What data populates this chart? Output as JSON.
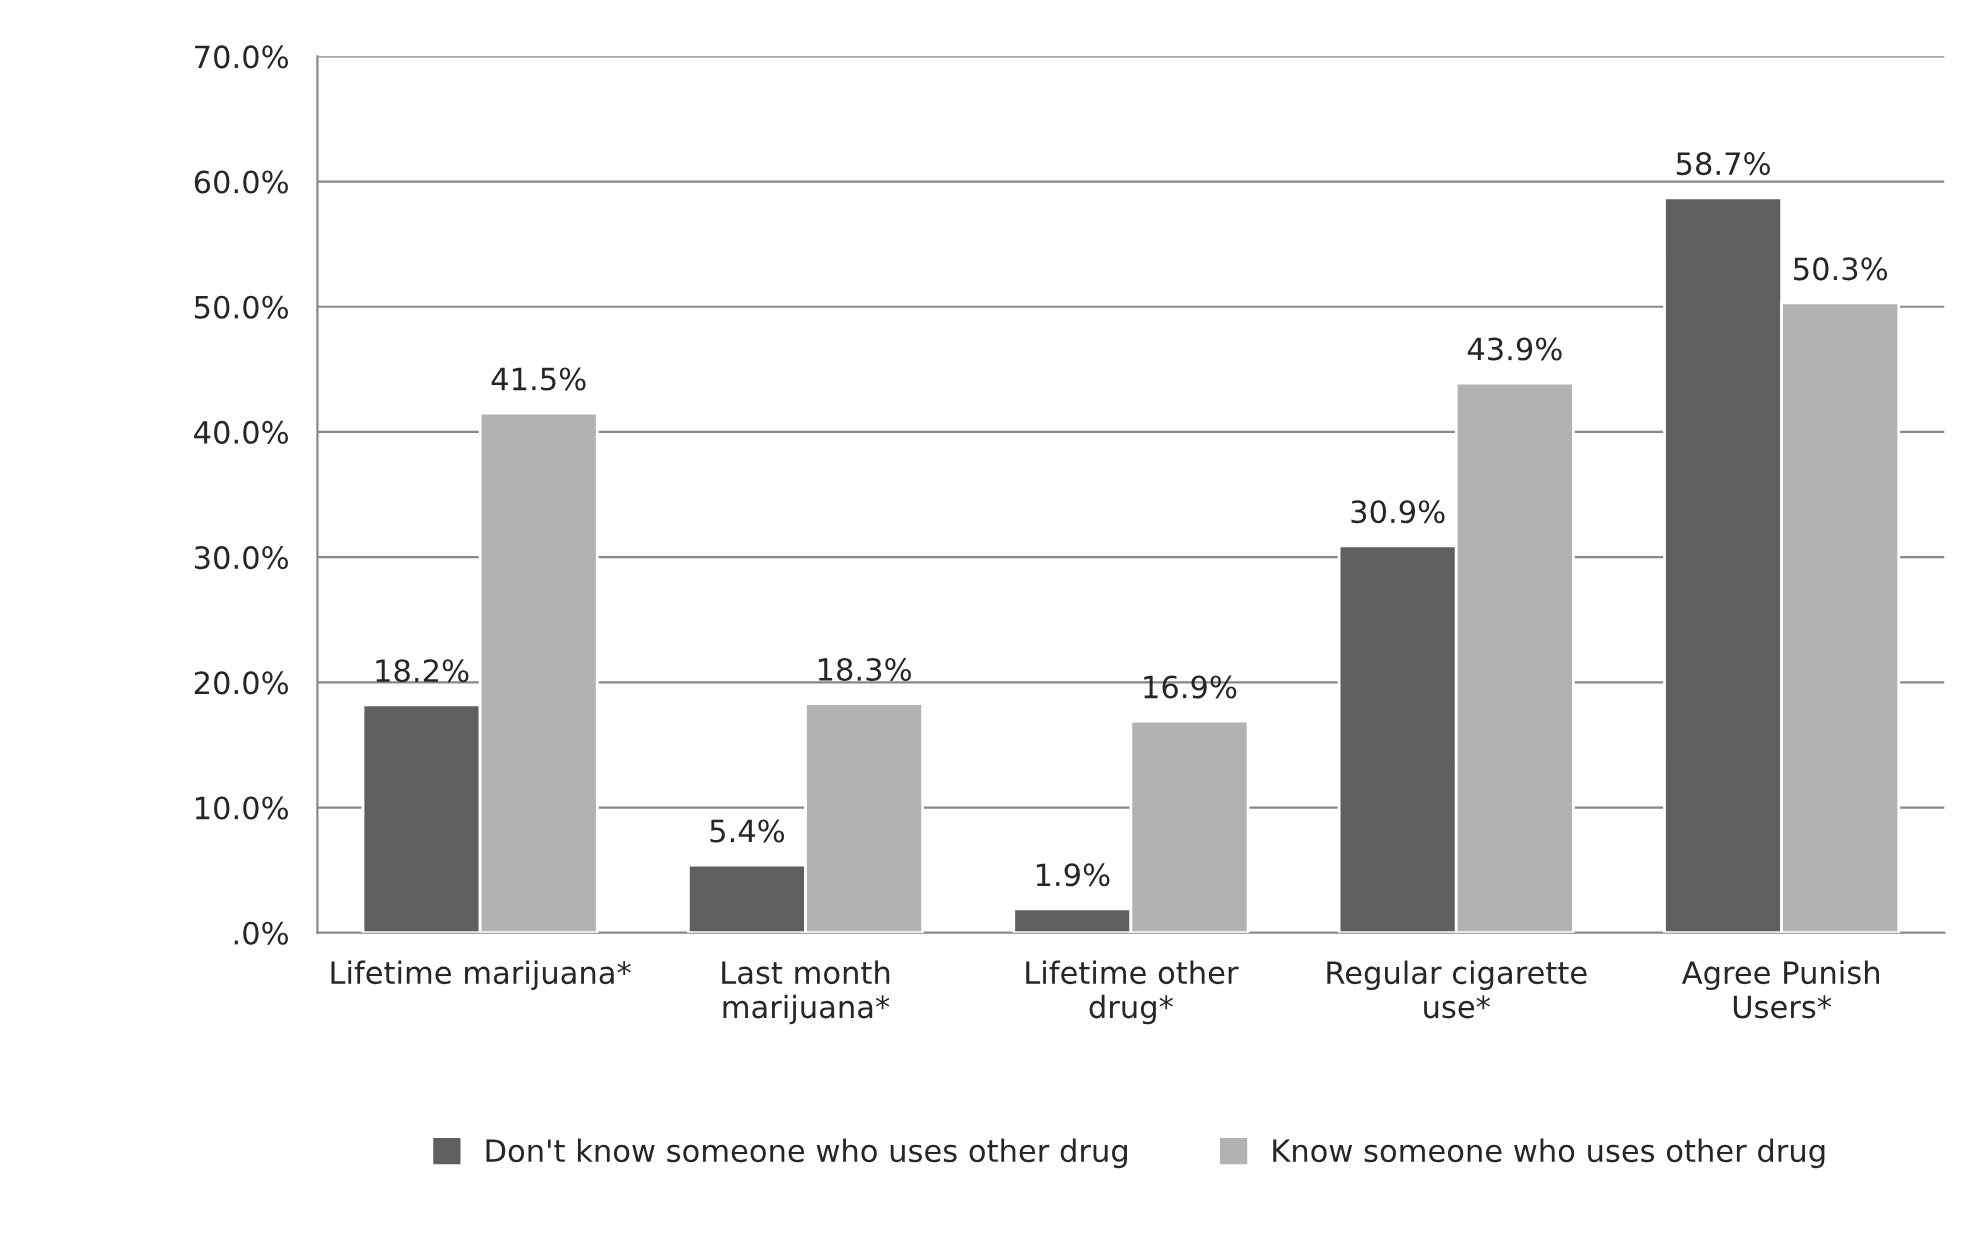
{
  "chart_data": {
    "type": "bar",
    "categories": [
      "Lifetime marijuana*",
      "Last month\nmarijuana*",
      "Lifetime other\ndrug*",
      "Regular cigarette\nuse*",
      "Agree Punish\nUsers*"
    ],
    "series": [
      {
        "name": "Don't know someone who uses other drug",
        "color": "#5f5f5f",
        "values": [
          18.2,
          5.4,
          1.9,
          30.9,
          58.7
        ],
        "value_labels": [
          "18.2%",
          "5.4%",
          "1.9%",
          "30.9%",
          "58.7%"
        ]
      },
      {
        "name": "Know someone who uses other drug",
        "color": "#b2b2b2",
        "values": [
          41.5,
          18.3,
          16.9,
          43.9,
          50.3
        ],
        "value_labels": [
          "41.5%",
          "18.3%",
          "16.9%",
          "43.9%",
          "50.3%"
        ]
      }
    ],
    "ylim": [
      0,
      70
    ],
    "yticks": [
      {
        "value": 0,
        "label": ".0%"
      },
      {
        "value": 10,
        "label": "10.0%"
      },
      {
        "value": 20,
        "label": "20.0%"
      },
      {
        "value": 30,
        "label": "30.0%"
      },
      {
        "value": 40,
        "label": "40.0%"
      },
      {
        "value": 50,
        "label": "50.0%"
      },
      {
        "value": 60,
        "label": "60.0%"
      },
      {
        "value": 70,
        "label": "70.0%"
      }
    ],
    "grid": "y",
    "legend": "bottom"
  }
}
